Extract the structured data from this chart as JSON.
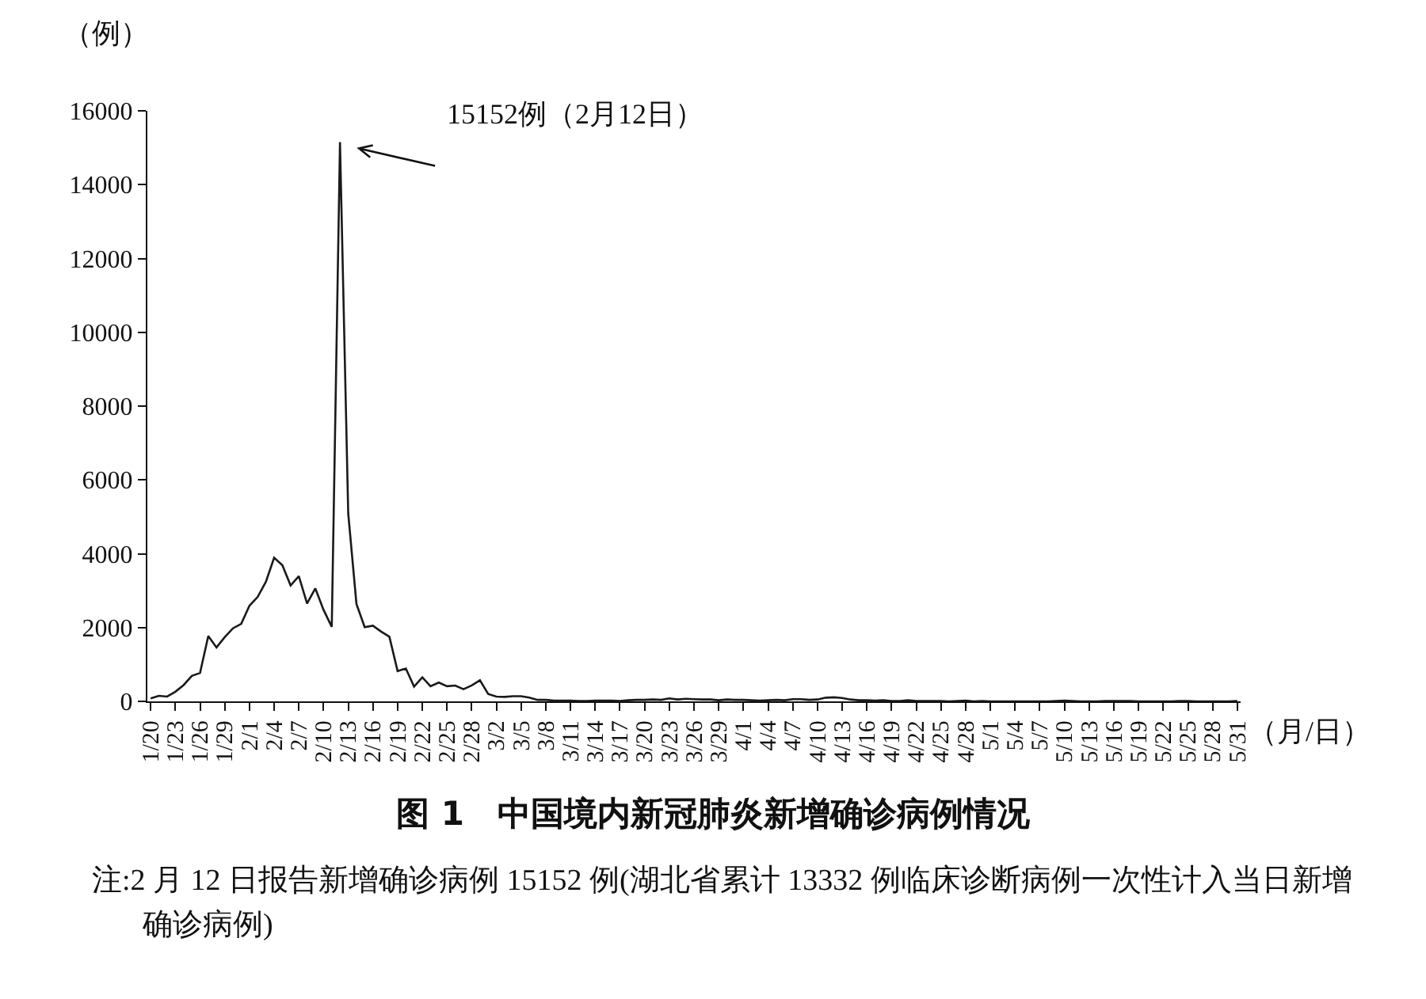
{
  "chart_data": {
    "type": "line",
    "title": "图 1　中国境内新冠肺炎新增确诊病例情况",
    "ylabel": "（例）",
    "xlabel": "（月/日）",
    "annotations": [
      "15152例（2月12日）",
      "注:2 月 12 日报告新增确诊病例 15152 例(湖北省累计 13332 例临床诊断病例一次性计入当日新增确诊病例)"
    ],
    "categories": [
      "1/20",
      null,
      null,
      "1/23",
      null,
      null,
      "1/26",
      null,
      null,
      "1/29",
      null,
      null,
      "2/1",
      null,
      null,
      "2/4",
      null,
      null,
      "2/7",
      null,
      null,
      "2/10",
      null,
      null,
      "2/13",
      null,
      null,
      "2/16",
      null,
      null,
      "2/19",
      null,
      null,
      "2/22",
      null,
      null,
      "2/25",
      null,
      null,
      "2/28",
      null,
      null,
      "3/2",
      null,
      null,
      "3/5",
      null,
      null,
      "3/8",
      null,
      null,
      "3/11",
      null,
      null,
      "3/14",
      null,
      null,
      "3/17",
      null,
      null,
      "3/20",
      null,
      null,
      "3/23",
      null,
      null,
      "3/26",
      null,
      null,
      "3/29",
      null,
      null,
      "4/1",
      null,
      null,
      "4/4",
      null,
      null,
      "4/7",
      null,
      null,
      "4/10",
      null,
      null,
      "4/13",
      null,
      null,
      "4/16",
      null,
      null,
      "4/19",
      null,
      null,
      "4/22",
      null,
      null,
      "4/25",
      null,
      null,
      "4/28",
      null,
      null,
      "5/1",
      null,
      null,
      "5/4",
      null,
      null,
      "5/7",
      null,
      null,
      "5/10",
      null,
      null,
      "5/13",
      null,
      null,
      "5/16",
      null,
      null,
      "5/19",
      null,
      null,
      "5/22",
      null,
      null,
      "5/25",
      null,
      null,
      "5/28",
      null,
      null,
      "5/31"
    ],
    "series": [
      {
        "color": "#1a1a1a",
        "values": [
          80,
          150,
          130,
          260,
          440,
          690,
          770,
          1770,
          1460,
          1740,
          1980,
          2100,
          2590,
          2830,
          3240,
          3890,
          3690,
          3140,
          3390,
          2650,
          3060,
          2480,
          2020,
          15152,
          5090,
          2640,
          2010,
          2050,
          1890,
          1750,
          820,
          890,
          400,
          650,
          410,
          510,
          410,
          430,
          330,
          430,
          570,
          200,
          130,
          120,
          140,
          140,
          100,
          40,
          40,
          20,
          20,
          20,
          10,
          10,
          20,
          20,
          20,
          10,
          30,
          40,
          40,
          50,
          40,
          80,
          50,
          70,
          60,
          50,
          50,
          30,
          50,
          40,
          40,
          30,
          20,
          30,
          40,
          30,
          60,
          60,
          40,
          50,
          100,
          110,
          90,
          50,
          30,
          30,
          20,
          30,
          10,
          10,
          30,
          10,
          10,
          10,
          10,
          0,
          10,
          20,
          0,
          10,
          0,
          0,
          0,
          0,
          0,
          0,
          0,
          0,
          10,
          20,
          10,
          0,
          0,
          0,
          10,
          10,
          10,
          10,
          0,
          0,
          0,
          0,
          0,
          10,
          10,
          0,
          0,
          0,
          0,
          0,
          10
        ]
      }
    ],
    "ylim": [
      0,
      16000
    ],
    "yticks": [
      0,
      2000,
      4000,
      6000,
      8000,
      10000,
      12000,
      14000,
      16000
    ],
    "grid": false,
    "marker": "none",
    "line_style": "solid"
  }
}
